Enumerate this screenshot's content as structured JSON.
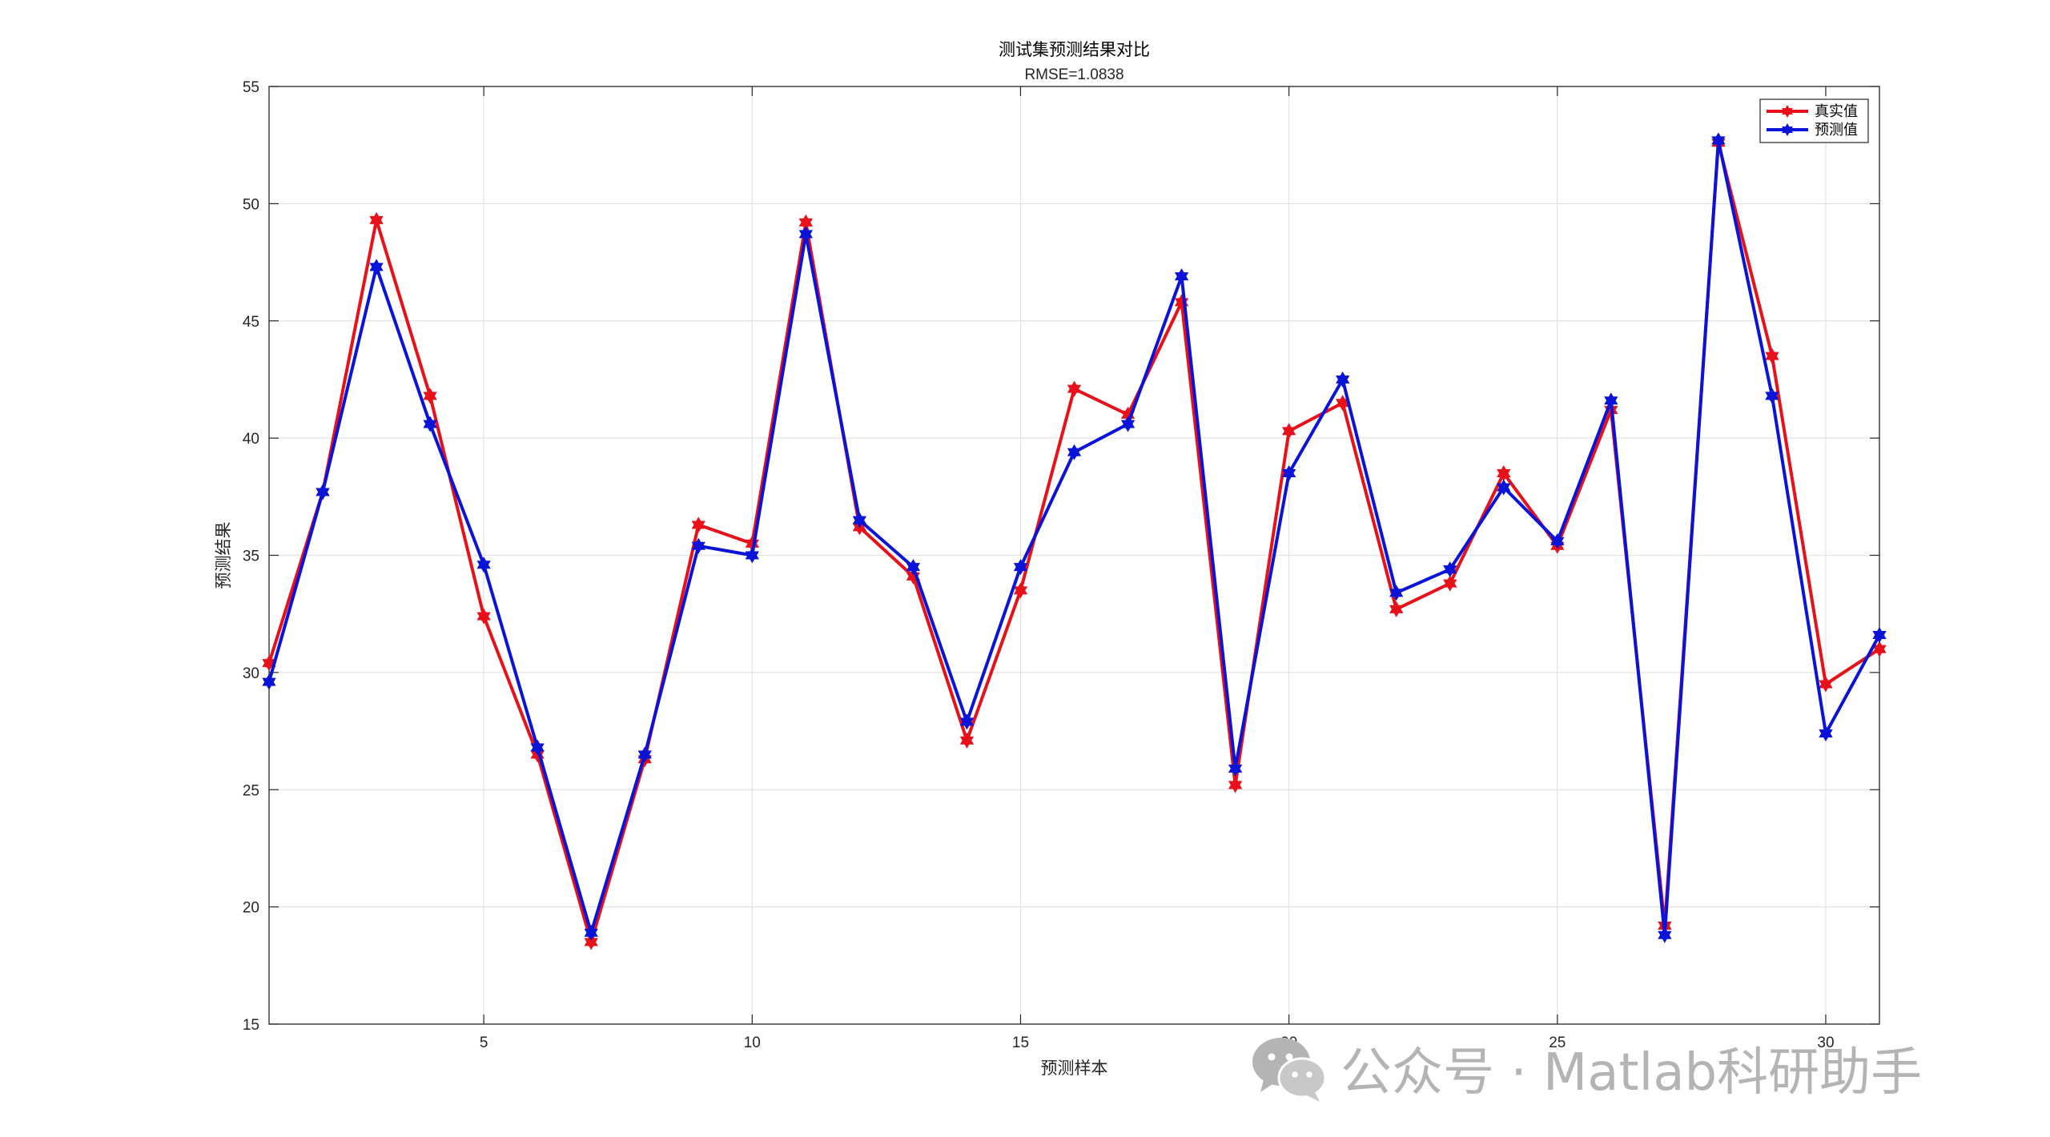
{
  "chart_data": {
    "type": "line",
    "title": "测试集预测结果对比",
    "subtitle": "RMSE=1.0838",
    "xlabel": "预测样本",
    "ylabel": "预测结果",
    "xlim": [
      1,
      31
    ],
    "ylim": [
      15,
      55
    ],
    "xticks": [
      5,
      10,
      15,
      20,
      25,
      30
    ],
    "yticks": [
      15,
      20,
      25,
      30,
      35,
      40,
      45,
      50,
      55
    ],
    "grid": true,
    "legend_position": "top-right",
    "x": [
      1,
      2,
      3,
      4,
      5,
      6,
      7,
      8,
      9,
      10,
      11,
      12,
      13,
      14,
      15,
      16,
      17,
      18,
      19,
      20,
      21,
      22,
      23,
      24,
      25,
      26,
      27,
      28,
      29,
      30,
      31
    ],
    "series": [
      {
        "name": "真实值",
        "color": "#e8111a",
        "marker": "hexagram",
        "values": [
          30.4,
          37.7,
          49.3,
          41.8,
          32.4,
          26.5,
          18.5,
          26.3,
          36.3,
          35.5,
          49.2,
          36.2,
          34.1,
          27.1,
          33.5,
          42.1,
          41.0,
          45.8,
          25.2,
          40.3,
          41.5,
          32.7,
          33.8,
          38.5,
          35.4,
          41.2,
          19.2,
          52.6,
          43.5,
          29.5,
          31.0
        ]
      },
      {
        "name": "预测值",
        "color": "#0a14d8",
        "marker": "hexagram",
        "values": [
          29.6,
          37.7,
          47.3,
          40.6,
          34.6,
          26.8,
          18.9,
          26.5,
          35.4,
          35.0,
          48.7,
          36.5,
          34.5,
          27.9,
          34.5,
          39.4,
          40.6,
          46.9,
          25.9,
          38.5,
          42.5,
          33.4,
          34.4,
          37.9,
          35.6,
          41.6,
          18.8,
          52.7,
          41.8,
          27.4,
          31.6
        ]
      }
    ]
  },
  "watermark": {
    "text": "公众号 · Matlab科研助手",
    "icon": "wechat-icon"
  }
}
